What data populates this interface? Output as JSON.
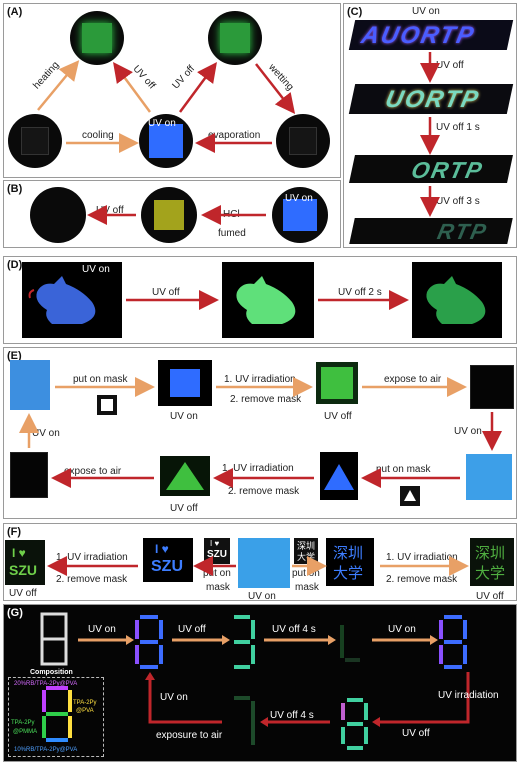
{
  "panels": {
    "a": "(A)",
    "b": "(B)",
    "c": "(C)",
    "d": "(D)",
    "e": "(E)",
    "f": "(F)",
    "g": "(G)"
  },
  "a": {
    "heating": "heating",
    "uv_off_left": "UV off",
    "uv_off_right": "UV off",
    "wetting": "wetting",
    "cooling": "cooling",
    "uv_on": "UV on",
    "evaporation": "evaporation"
  },
  "b": {
    "uv_off": "UV off",
    "hcl": "HCl",
    "fumed": "fumed",
    "uv_on": "UV on"
  },
  "c": {
    "uv_on": "UV on",
    "uv_off": "UV off",
    "uv_off_1s": "UV off 1 s",
    "uv_off_3s": "UV off 3 s",
    "strip1": "AUORTP",
    "strip2": "UORTP",
    "strip3": "ORTP",
    "strip4": "RTP"
  },
  "d": {
    "uv_on": "UV on",
    "uv_off": "UV off",
    "uv_off_2s": "UV off 2 s"
  },
  "e": {
    "put_on_mask_top": "put on mask",
    "uv_irr_top": "1. UV irradiation",
    "remove_top": "2. remove mask",
    "expose_top": "expose to air",
    "uv_on_below_top": "UV on",
    "uv_off_top": "UV off",
    "uv_on_right": "UV on",
    "uv_on_left": "UV on",
    "put_on_mask_bottom": "put on mask",
    "uv_irr_bottom": "1. UV irradiation",
    "remove_bottom": "2. remove mask",
    "expose_bottom": "expose to air",
    "uv_off_bottom": "UV off"
  },
  "f": {
    "uv_off_left": "UV off",
    "uv_irr_left": "1. UV irradiation",
    "remove_left": "2. remove mask",
    "szu_text": "SZU",
    "szu_heart": "I ♥",
    "put_on_mask_1": "put on",
    "mask_1": "mask",
    "uv_on": "UV on",
    "put_on_mask_2": "put on",
    "mask_2": "mask",
    "uv_irr_right": "1. UV irradiation",
    "remove_right": "2. remove mask",
    "uv_off_right": "UV off",
    "cn_line1": "深圳",
    "cn_line2": "大学"
  },
  "g": {
    "composition": "Composition",
    "comp_top": "20%RB/TPA-2Py@PVA",
    "comp_right_1": "TPA-2Py",
    "comp_right_2": "@PVA",
    "comp_left_1": "TPA-2Py",
    "comp_left_2": "@PMMA",
    "comp_bottom": "10%RB/TPA-2Py@PVA",
    "uv_on_1": "UV on",
    "uv_off_1": "UV off",
    "uv_off_4s_top": "UV off 4 s",
    "uv_on_2": "UV on",
    "uv_irradiation": "UV  irradiation",
    "uv_off_2": "UV off",
    "uv_off_4s_bottom": "UV off 4 s",
    "uv_on_3": "UV on",
    "exposure": "exposure to air"
  },
  "colors": {
    "orange_arrow": "#e8a066",
    "red_arrow": "#c0262b",
    "blue_glow": "#2f6cff",
    "green_glow": "#2fcf4a"
  }
}
